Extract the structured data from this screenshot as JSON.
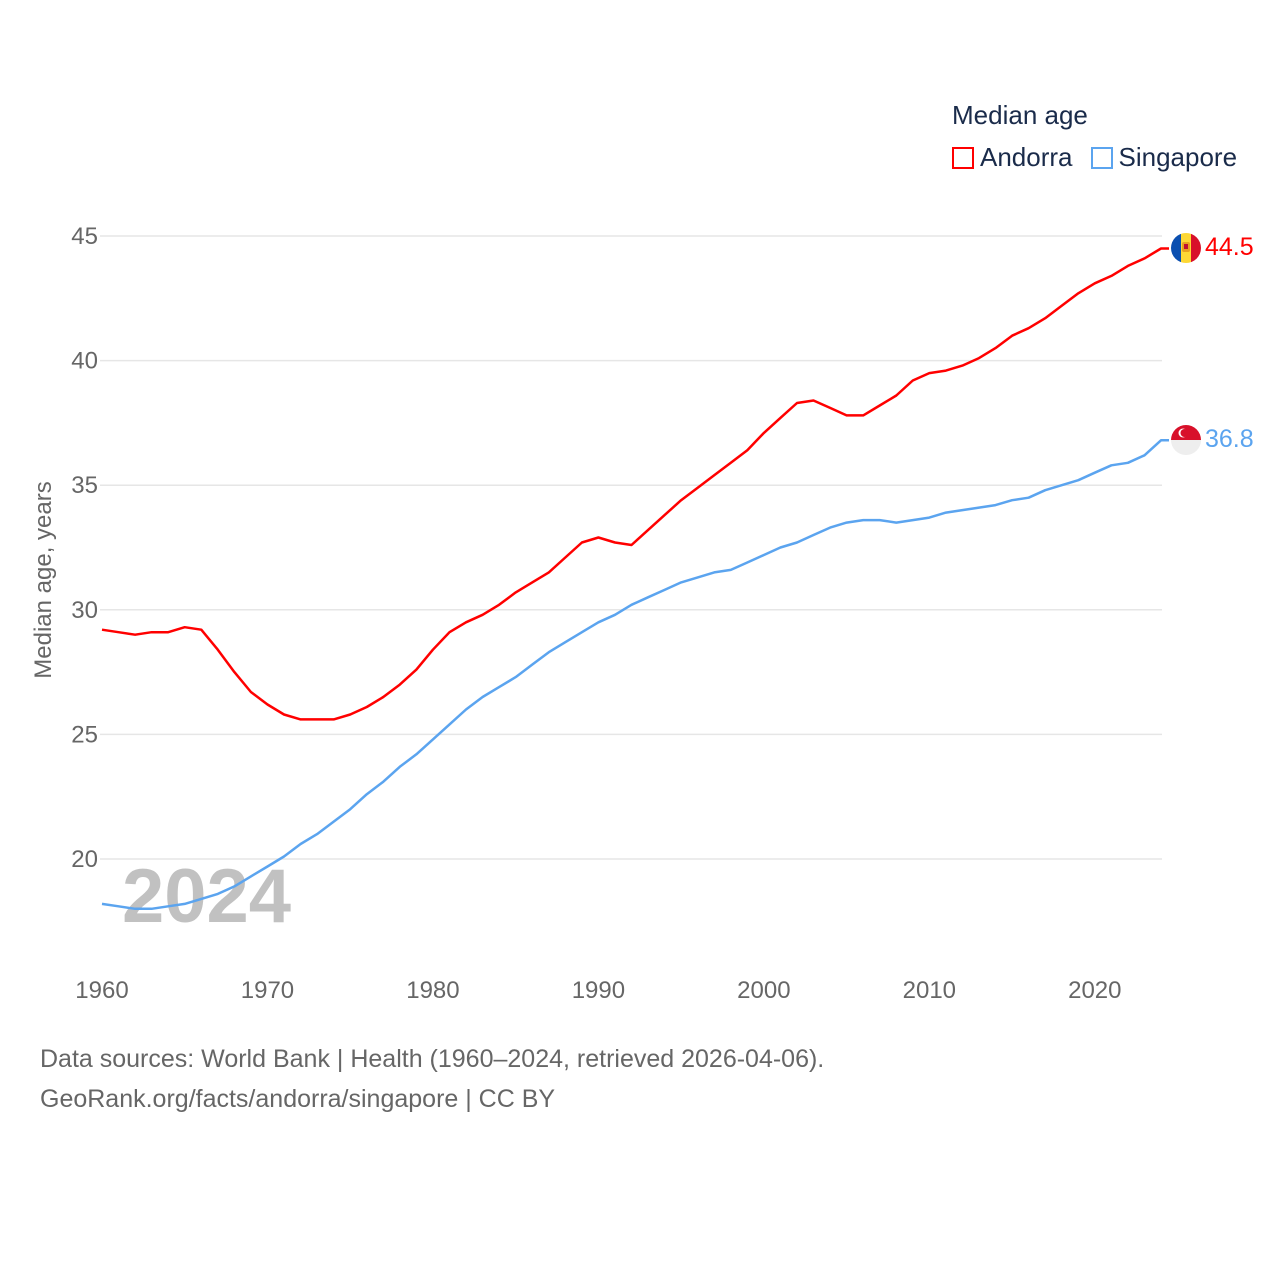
{
  "chart_data": {
    "type": "line",
    "title": "Median age",
    "xlabel": "",
    "ylabel": "Median age, years",
    "xlim": [
      1960,
      2024
    ],
    "ylim": [
      16.2,
      46
    ],
    "grid": true,
    "legend_position": "top-right",
    "x_ticks": [
      "1960",
      "1970",
      "1980",
      "1990",
      "2000",
      "2010",
      "2020"
    ],
    "y_ticks": [
      "20",
      "25",
      "30",
      "35",
      "40",
      "45"
    ],
    "year_watermark": "2024",
    "x": [
      1960,
      1961,
      1962,
      1963,
      1964,
      1965,
      1966,
      1967,
      1968,
      1969,
      1970,
      1971,
      1972,
      1973,
      1974,
      1975,
      1976,
      1977,
      1978,
      1979,
      1980,
      1981,
      1982,
      1983,
      1984,
      1985,
      1986,
      1987,
      1988,
      1989,
      1990,
      1991,
      1992,
      1993,
      1994,
      1995,
      1996,
      1997,
      1998,
      1999,
      2000,
      2001,
      2002,
      2003,
      2004,
      2005,
      2006,
      2007,
      2008,
      2009,
      2010,
      2011,
      2012,
      2013,
      2014,
      2015,
      2016,
      2017,
      2018,
      2019,
      2020,
      2021,
      2022,
      2023,
      2024
    ],
    "series": [
      {
        "name": "Andorra",
        "color": "#ff0000",
        "end_label": "44.5",
        "values": [
          29.2,
          29.1,
          29.0,
          29.1,
          29.1,
          29.3,
          29.2,
          28.4,
          27.5,
          26.7,
          26.2,
          25.8,
          25.6,
          25.6,
          25.6,
          25.8,
          26.1,
          26.5,
          27.0,
          27.6,
          28.4,
          29.1,
          29.5,
          29.8,
          30.2,
          30.7,
          31.1,
          31.5,
          32.1,
          32.7,
          32.9,
          32.7,
          32.6,
          33.2,
          33.8,
          34.4,
          34.9,
          35.4,
          35.9,
          36.4,
          37.1,
          37.7,
          38.3,
          38.4,
          38.1,
          37.8,
          37.8,
          38.2,
          38.6,
          39.2,
          39.5,
          39.6,
          39.8,
          40.1,
          40.5,
          41.0,
          41.3,
          41.7,
          42.2,
          42.7,
          43.1,
          43.4,
          43.8,
          44.1,
          44.5
        ]
      },
      {
        "name": "Singapore",
        "color": "#5ba4ef",
        "end_label": "36.8",
        "values": [
          18.2,
          18.1,
          18.0,
          18.0,
          18.1,
          18.2,
          18.4,
          18.6,
          18.9,
          19.3,
          19.7,
          20.1,
          20.6,
          21.0,
          21.5,
          22.0,
          22.6,
          23.1,
          23.7,
          24.2,
          24.8,
          25.4,
          26.0,
          26.5,
          26.9,
          27.3,
          27.8,
          28.3,
          28.7,
          29.1,
          29.5,
          29.8,
          30.2,
          30.5,
          30.8,
          31.1,
          31.3,
          31.5,
          31.6,
          31.9,
          32.2,
          32.5,
          32.7,
          33.0,
          33.3,
          33.5,
          33.6,
          33.6,
          33.5,
          33.6,
          33.7,
          33.9,
          34.0,
          34.1,
          34.2,
          34.4,
          34.5,
          34.8,
          35.0,
          35.2,
          35.5,
          35.8,
          35.9,
          36.2,
          36.8
        ]
      }
    ]
  },
  "legend": {
    "title": "Median age",
    "items": [
      "Andorra",
      "Singapore"
    ]
  },
  "footer": {
    "line1": "Data sources: World Bank | Health (1960–2024, retrieved 2026-04-06).",
    "line2": "GeoRank.org/facts/andorra/singapore | CC BY"
  }
}
